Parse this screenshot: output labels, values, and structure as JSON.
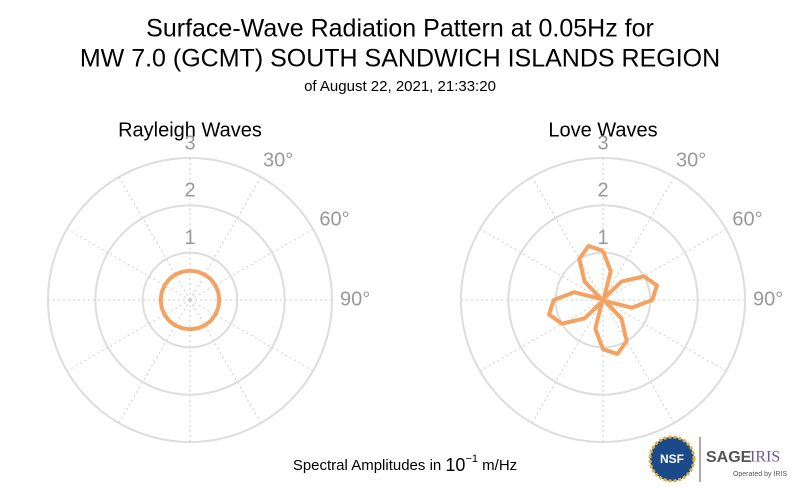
{
  "chart_data": [
    {
      "type": "polar",
      "title": "Rayleigh Waves",
      "theta": [
        0,
        15,
        30,
        45,
        60,
        75,
        90,
        105,
        120,
        135,
        150,
        165,
        180,
        195,
        210,
        225,
        240,
        255,
        270,
        285,
        300,
        315,
        330,
        345,
        360
      ],
      "series": [
        {
          "name": "Rayleigh Waves",
          "color": "#f4a261",
          "values": [
            0.62,
            0.62,
            0.62,
            0.62,
            0.62,
            0.62,
            0.62,
            0.62,
            0.62,
            0.62,
            0.62,
            0.62,
            0.62,
            0.62,
            0.62,
            0.62,
            0.62,
            0.62,
            0.62,
            0.62,
            0.62,
            0.62,
            0.62,
            0.62,
            0.62
          ]
        }
      ],
      "rlim": [
        0,
        3
      ],
      "rticks": [
        1,
        2,
        3
      ],
      "angle_ticks": [
        {
          "value": 30,
          "label": "30°"
        },
        {
          "value": 60,
          "label": "60°"
        },
        {
          "value": 90,
          "label": "90°"
        }
      ],
      "grid": true
    },
    {
      "type": "polar",
      "title": "Love Waves",
      "theta": [
        0,
        15,
        30,
        45,
        60,
        75,
        90,
        105,
        120,
        135,
        150,
        165,
        180,
        195,
        210,
        225,
        240,
        255,
        270,
        285,
        300,
        315,
        330,
        345,
        360
      ],
      "series": [
        {
          "name": "Love Waves",
          "color": "#f4a261",
          "values": [
            1.04,
            0.63,
            0.04,
            0.55,
            1.0,
            1.18,
            1.04,
            0.63,
            0.04,
            0.55,
            1.0,
            1.18,
            1.04,
            0.63,
            0.04,
            0.55,
            1.0,
            1.18,
            1.04,
            0.63,
            0.04,
            0.55,
            1.0,
            1.18,
            1.04
          ]
        }
      ],
      "rlim": [
        0,
        3
      ],
      "rticks": [
        1,
        2,
        3
      ],
      "angle_ticks": [
        {
          "value": 30,
          "label": "30°"
        },
        {
          "value": 60,
          "label": "60°"
        },
        {
          "value": 90,
          "label": "90°"
        }
      ],
      "grid": true
    }
  ],
  "header": {
    "title_line1": "Surface-Wave Radiation Pattern at 0.05Hz for",
    "title_line2": "MW 7.0 (GCMT) SOUTH SANDWICH ISLANDS REGION",
    "subtitle": "of August 22, 2021, 21:33:20"
  },
  "footer": {
    "text": "Spectral Amplitudes in",
    "base": "10",
    "exponent": "−1",
    "unit": "m/Hz"
  },
  "logo": {
    "nsf": "NSF",
    "sage": "SAGE",
    "iris": "IRIS",
    "operated": "Operated by IRIS"
  }
}
